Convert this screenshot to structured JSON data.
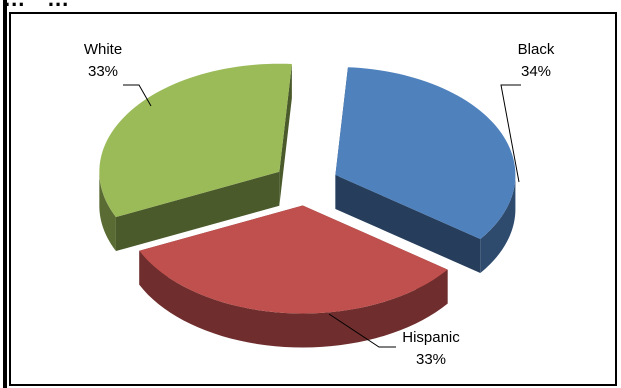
{
  "chart_data": {
    "type": "pie",
    "title": "",
    "slices": [
      {
        "name": "Black",
        "value": 34,
        "label": "34%",
        "color": "#4F81BD"
      },
      {
        "name": "Hispanic",
        "value": 33,
        "label": "33%",
        "color": "#C0504D"
      },
      {
        "name": "White",
        "value": 33,
        "label": "33%",
        "color": "#9BBB59"
      }
    ],
    "exploded": true,
    "three_d": true,
    "legend": "none"
  },
  "header": {
    "partial_text": "... · ..."
  }
}
